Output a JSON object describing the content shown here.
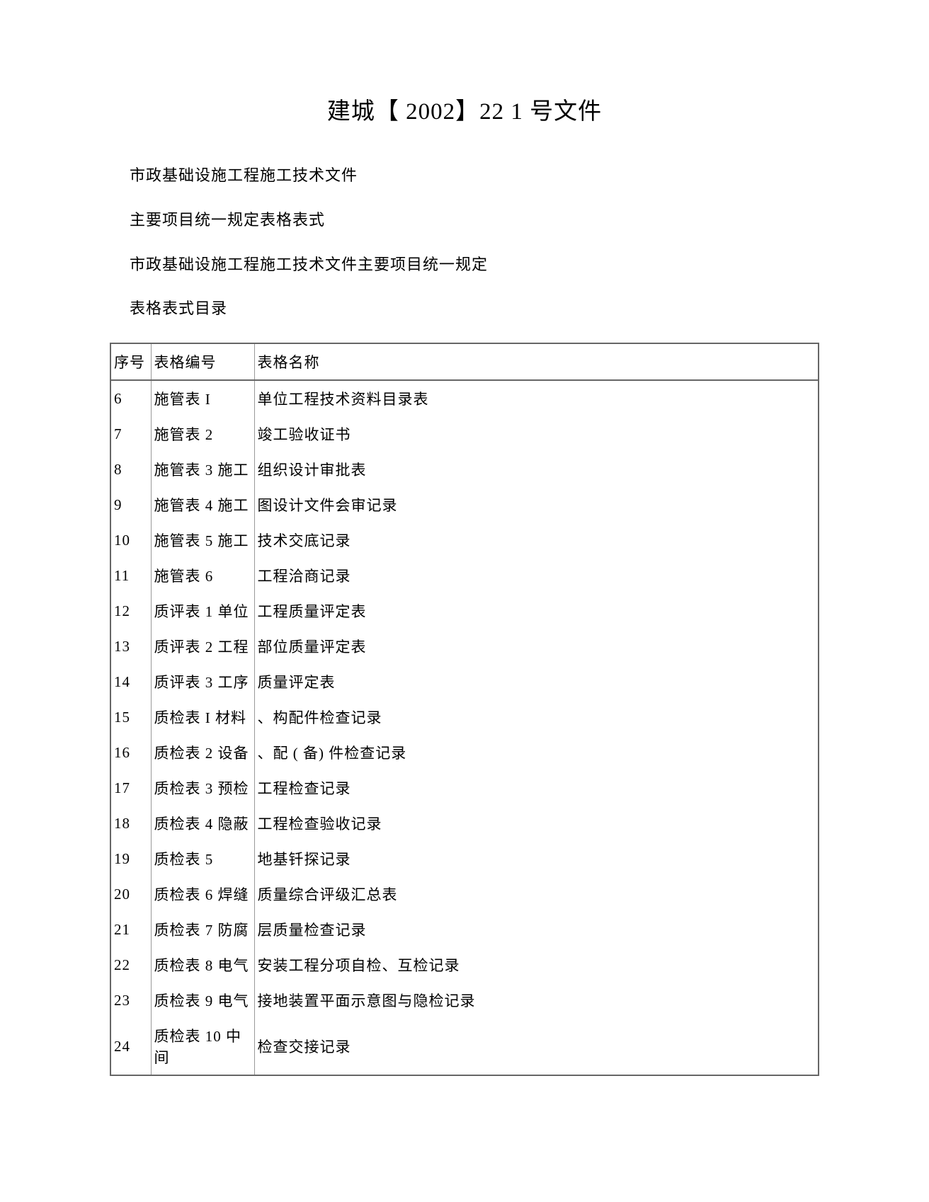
{
  "document": {
    "title": "建城【 2002】22 1 号文件",
    "preamble": [
      "市政基础设施工程施工技术文件",
      "主要项目统一规定表格表式",
      "市政基础设施工程施工技术文件主要项目统一规定",
      "表格表式目录"
    ],
    "table": {
      "headers": {
        "seq": "序号",
        "code": "表格编号",
        "name": "表格名称"
      },
      "rows": [
        {
          "seq": "6",
          "code": "施管表 I",
          "name": "单位工程技术资料目录表"
        },
        {
          "seq": "7",
          "code": "施管表 2",
          "name": "竣工验收证书"
        },
        {
          "seq": "8",
          "code": "施管表 3 施工",
          "name": "组织设计审批表"
        },
        {
          "seq": "9",
          "code": "施管表 4 施工",
          "name": "图设计文件会审记录"
        },
        {
          "seq": "10",
          "code": "施管表 5 施工",
          "name": "技术交底记录"
        },
        {
          "seq": "11",
          "code": "施管表 6",
          "name": "工程洽商记录"
        },
        {
          "seq": "12",
          "code": "质评表 1 单位",
          "name": "工程质量评定表"
        },
        {
          "seq": "13",
          "code": "质评表 2 工程",
          "name": "部位质量评定表"
        },
        {
          "seq": "14",
          "code": "质评表 3 工序",
          "name": "质量评定表"
        },
        {
          "seq": "15",
          "code": "质检表 I 材料",
          "name": "、构配件检查记录"
        },
        {
          "seq": "16",
          "code": "质检表 2 设备",
          "name": "、配 ( 备) 件检查记录"
        },
        {
          "seq": "17",
          "code": "质检表 3 预检",
          "name": "工程检查记录"
        },
        {
          "seq": "18",
          "code": "质检表 4 隐蔽",
          "name": "工程检查验收记录"
        },
        {
          "seq": "19",
          "code": "质检表 5",
          "name": "地基钎探记录"
        },
        {
          "seq": "20",
          "code": "质检表 6 焊缝",
          "name": "质量综合评级汇总表"
        },
        {
          "seq": "21",
          "code": "质检表 7 防腐",
          "name": "层质量检查记录"
        },
        {
          "seq": "22",
          "code": "质检表 8 电气",
          "name": "安装工程分项自检、互检记录"
        },
        {
          "seq": "23",
          "code": "质检表 9 电气",
          "name": "接地装置平面示意图与隐检记录"
        },
        {
          "seq": "24",
          "code": "质检表 10 中间",
          "name": "检查交接记录"
        }
      ]
    }
  }
}
